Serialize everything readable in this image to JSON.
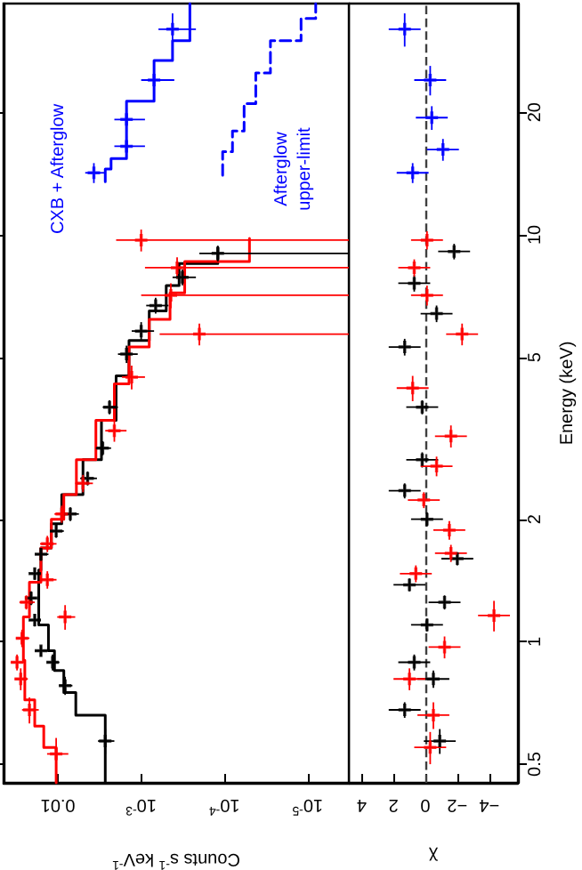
{
  "chart_data": [
    {
      "type": "scatter",
      "log": "xy",
      "marker": "cross",
      "tick_labels": "x",
      "xlabel": "Counts s$^{-1}$ keV$^{-1}$",
      "ylim": [
        0.45,
        37
      ],
      "yticks": [
        0.5,
        1,
        2,
        5,
        10,
        20
      ],
      "xlim": [
        0.045,
        3.2e-06
      ],
      "xticks": [
        0.01,
        {
          "value": 0.001,
          "label": "10$^{-3}$"
        },
        {
          "value": 0.0001,
          "label": "10$^{-4}$"
        },
        {
          "value": 1e-05,
          "label": "10$^{-5}$"
        }
      ],
      "annotations": [
        "CXB + Afterglow",
        "Afterglow\nupper-limit"
      ],
      "series": [
        {
          "color": "#000000",
          "values": [
            0.57,
            0.78,
            0.89,
            0.95,
            1.13,
            1.28,
            1.47,
            1.64,
            1.87,
            2.06,
            2.52,
            2.99,
            3.77,
            5.09,
            5.8,
            6.7,
            7.86,
            9.0
          ],
          "x": [
            0.0027,
            0.0082,
            0.0116,
            0.016,
            0.019,
            0.021,
            0.019,
            0.016,
            0.0105,
            0.0071,
            0.0044,
            0.0029,
            0.0024,
            0.0015,
            0.001,
            0.00067,
            0.00032,
            0.00012
          ],
          "xerrors": [
            0.0006,
            0.0015,
            0.002,
            0.003,
            0.003,
            0.003,
            0.003,
            0.003,
            0.002,
            0.0015,
            0.001,
            0.0006,
            0.0005,
            0.0004,
            0.0003,
            0.0002,
            0.0001,
            [
              3.2e-06,
              0.0002
            ]
          ],
          "errors": [
            0.04,
            0.04,
            0.04,
            0.03,
            0.04,
            0.05,
            0.05,
            0.06,
            0.07,
            0.08,
            0.1,
            0.12,
            0.15,
            0.25,
            0.3,
            0.3,
            0.35,
            0.4
          ]
        },
        {
          "color": "#ff0000",
          "values": [
            0.53,
            0.68,
            0.81,
            0.89,
            1.02,
            1.15,
            1.25,
            1.42,
            1.74,
            2.06,
            2.45,
            3.3,
            4.47,
            5.7,
            7.1,
            8.3,
            9.7
          ],
          "x": [
            0.0105,
            0.022,
            0.028,
            0.031,
            0.027,
            0.0082,
            0.024,
            0.0134,
            0.0134,
            0.009,
            0.005,
            0.0021,
            0.0013,
            0.0002,
            0.00044,
            0.00037,
            0.001
          ],
          "xerrors": [
            0.003,
            0.005,
            0.005,
            0.006,
            0.005,
            0.002,
            0.005,
            0.003,
            0.003,
            0.002,
            0.0012,
            0.0006,
            0.0004,
            [
              3.2e-06,
              0.0006
            ],
            [
              3.2e-06,
              0.001
            ],
            [
              3.2e-06,
              0.0009
            ],
            [
              3.2e-06,
              0.002
            ]
          ],
          "errors": [
            0.05,
            0.05,
            0.05,
            0.04,
            0.05,
            0.08,
            0.05,
            0.07,
            0.08,
            0.1,
            0.12,
            0.2,
            0.3,
            0.35,
            0.5,
            0.5,
            0.6
          ]
        },
        {
          "color": "#0000ff",
          "values": [
            14.2,
            16.5,
            19.2,
            24.0,
            32.0
          ],
          "x": [
            0.0037,
            0.0015,
            0.0015,
            0.0007,
            0.00042
          ],
          "xerrors": [
            0.001,
            0.0006,
            0.0006,
            0.0003,
            0.0002
          ],
          "errors": [
            0.8,
            1,
            1.3,
            2,
            3
          ]
        },
        {
          "type": "step",
          "marker": "none",
          "color": "#000000",
          "values": [
            0.45,
            0.66,
            0.75,
            0.85,
            0.95,
            1.1,
            1.5,
            1.7,
            1.95,
            2.3,
            2.8,
            3.5,
            4.5,
            5.5,
            6.5,
            7.5,
            8.5,
            9.3
          ],
          "x": [
            0.0027,
            0.0061,
            0.0085,
            0.011,
            0.013,
            0.017,
            0.016,
            0.012,
            0.009,
            0.005,
            0.003,
            0.002,
            0.0014,
            0.0008,
            0.0005,
            0.00035,
            0.00012,
            0.00012
          ]
        },
        {
          "type": "step",
          "marker": "none",
          "color": "#ff0000",
          "values": [
            0.45,
            0.55,
            0.62,
            0.72,
            0.9,
            1.15,
            1.4,
            1.7,
            2.0,
            2.3,
            2.8,
            3.5,
            4.3,
            5.3,
            6.2,
            7.2,
            8.6,
            9.8
          ],
          "x": [
            0.0105,
            0.0148,
            0.019,
            0.025,
            0.026,
            0.022,
            0.016,
            0.012,
            0.0085,
            0.006,
            0.0035,
            0.0021,
            0.0014,
            0.0008,
            0.00045,
            0.0003,
            5e-05,
            5e-05
          ]
        },
        {
          "type": "step",
          "marker": "none",
          "color": "#0000ff",
          "values": [
            13.5,
            14.5,
            15.4,
            21.3,
            26.8,
            30,
            37
          ],
          "x": [
            0.0027,
            0.0023,
            0.0015,
            0.0007,
            0.00042,
            0.00026,
            0.00026
          ]
        },
        {
          "type": "step",
          "marker": "none",
          "color": "#0000ff",
          "line_style": "dashed",
          "values": [
            14,
            16,
            18,
            21,
            25,
            30,
            34,
            37
          ],
          "x": [
            0.000105,
            8e-05,
            5.8e-05,
            4.2e-05,
            2.8e-05,
            1.2e-05,
            8e-06,
            8e-06
          ]
        }
      ]
    },
    {
      "type": "scatter",
      "log": "y",
      "marker": "cross",
      "ylabel": "Energy (keV)",
      "xlabel": "χ",
      "ylim": [
        0.45,
        37
      ],
      "yticks": [
        0.5,
        1,
        2,
        5,
        10,
        20
      ],
      "xlim": [
        4.8,
        -5.8
      ],
      "xticks": [
        4,
        2,
        0,
        {
          "value": -2,
          "label": "−2"
        },
        {
          "value": -4,
          "label": "−4"
        }
      ],
      "ref_lines": [
        {
          "axis": "x",
          "value": 0,
          "color": "#404040",
          "line_style": "dashed"
        }
      ],
      "series": [
        {
          "color": "#000000",
          "values": [
            0.57,
            0.68,
            0.81,
            0.89,
            1.1,
            1.25,
            1.38,
            1.6,
            2.0,
            2.35,
            2.8,
            3.77,
            5.3,
            6.4,
            7.6,
            9.1
          ],
          "x": [
            -0.9,
            1.3,
            -0.5,
            0.7,
            -0.1,
            -1.2,
            1.0,
            -2.0,
            -0.1,
            1.3,
            0.2,
            0.2,
            1.3,
            -0.7,
            0.7,
            -1.8
          ],
          "xerrors": [
            1,
            1,
            1,
            1,
            1,
            1,
            1,
            1,
            1,
            1,
            1,
            1,
            1,
            1,
            1,
            1
          ],
          "errors": [
            0.04,
            0.03,
            0.04,
            0.04,
            0.04,
            0.05,
            0.05,
            0.06,
            0.08,
            0.1,
            0.12,
            0.15,
            0.25,
            0.3,
            0.35,
            0.4
          ]
        },
        {
          "color": "#ff0000",
          "values": [
            0.55,
            0.66,
            0.81,
            0.97,
            1.16,
            1.47,
            1.65,
            1.88,
            2.23,
            2.7,
            3.2,
            4.2,
            5.7,
            7.1,
            8.3,
            9.7
          ],
          "x": [
            -0.3,
            -0.5,
            1.0,
            -1.2,
            -4.3,
            0.6,
            -1.6,
            -1.5,
            0.1,
            -0.7,
            -1.6,
            0.8,
            -2.3,
            -0.1,
            0.7,
            -0.1
          ],
          "xerrors": [
            1,
            1,
            1,
            1,
            1,
            1,
            1,
            1,
            1,
            1,
            1,
            1,
            1,
            1,
            1,
            1
          ],
          "errors": [
            0.05,
            0.05,
            0.05,
            0.06,
            0.1,
            0.07,
            0.08,
            0.1,
            0.1,
            0.15,
            0.2,
            0.3,
            0.35,
            0.4,
            0.4,
            0.5
          ]
        },
        {
          "color": "#0000ff",
          "values": [
            14.2,
            16.2,
            19.4,
            24,
            32
          ],
          "x": [
            0.8,
            -1.1,
            -0.4,
            -0.3,
            1.3
          ],
          "xerrors": [
            1,
            1,
            1,
            1,
            1
          ],
          "errors": [
            0.8,
            1,
            1.3,
            2,
            3
          ]
        }
      ]
    }
  ]
}
